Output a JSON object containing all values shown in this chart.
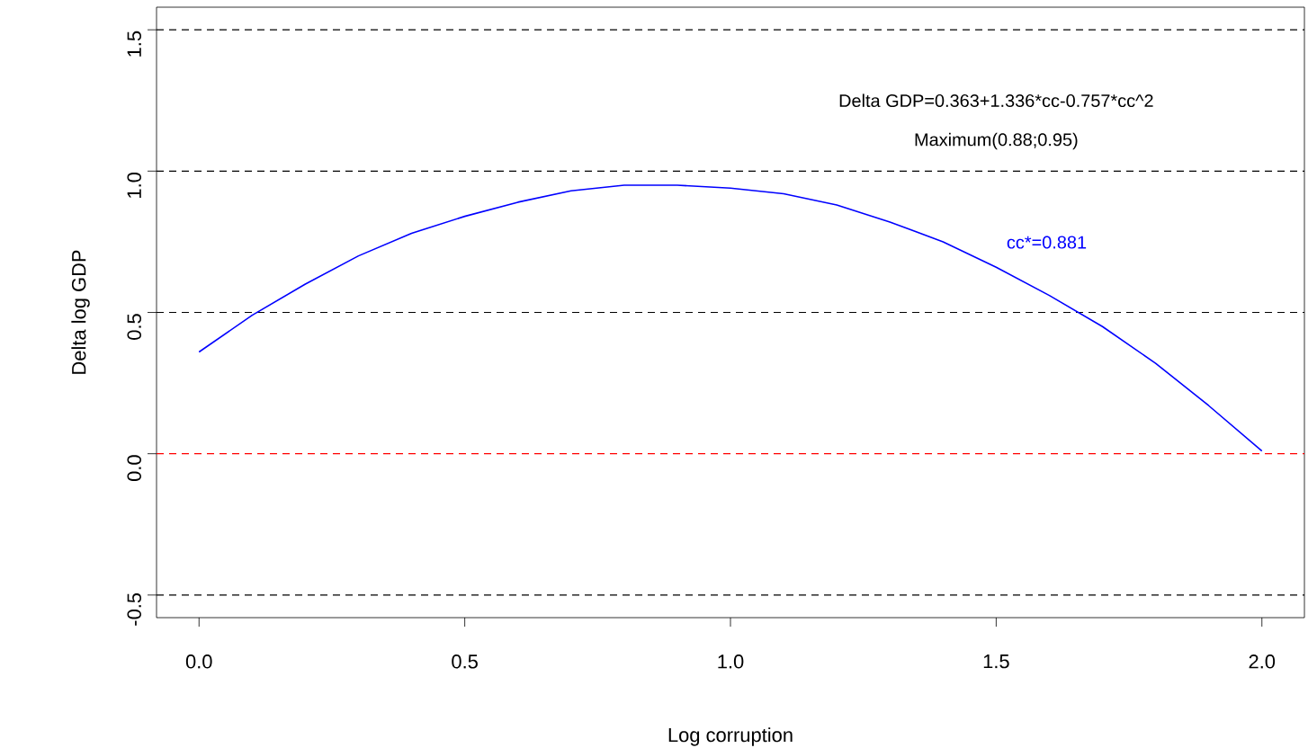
{
  "chart_data": {
    "type": "line",
    "xlabel": "Log corruption",
    "ylabel": "Delta log GDP",
    "x": [
      0,
      0.1,
      0.2,
      0.3,
      0.4,
      0.5,
      0.6,
      0.7,
      0.8,
      0.9,
      1.0,
      1.1,
      1.2,
      1.3,
      1.4,
      1.5,
      1.6,
      1.7,
      1.8,
      1.9,
      2.0
    ],
    "series": [
      {
        "color": "#0000ff",
        "values": [
          0.36,
          0.49,
          0.6,
          0.7,
          0.78,
          0.84,
          0.89,
          0.93,
          0.95,
          0.95,
          0.94,
          0.92,
          0.88,
          0.82,
          0.75,
          0.66,
          0.56,
          0.45,
          0.32,
          0.17,
          0.01
        ]
      }
    ],
    "xlim": [
      -0.08,
      2.08
    ],
    "ylim": [
      -0.58,
      1.58
    ],
    "xticks": [
      {
        "value": 0,
        "label": "0.0"
      },
      {
        "value": 0.5,
        "label": "0.5"
      },
      {
        "value": 1,
        "label": "1.0"
      },
      {
        "value": 1.5,
        "label": "1.5"
      },
      {
        "value": 2,
        "label": "2.0"
      }
    ],
    "yticks": [
      {
        "value": -0.5,
        "label": "-0.5"
      },
      {
        "value": 0,
        "label": "0.0"
      },
      {
        "value": 0.5,
        "label": "0.5"
      },
      {
        "value": 1,
        "label": "1.0"
      },
      {
        "value": 1.5,
        "label": "1.5"
      }
    ],
    "ref_lines": [
      {
        "axis": "y",
        "value": -0.5,
        "color": "#000000",
        "line_style": "dashed"
      },
      {
        "axis": "y",
        "value": 0,
        "color": "#ff0000",
        "line_style": "dashed"
      },
      {
        "axis": "y",
        "value": 0.5,
        "color": "#000000",
        "line_style": "dashed"
      },
      {
        "axis": "y",
        "value": 1,
        "color": "#000000",
        "line_style": "dashed"
      },
      {
        "axis": "y",
        "value": 1.5,
        "color": "#000000",
        "line_style": "dashed"
      }
    ],
    "annotations": [
      "Delta GDP=0.363+1.336*cc-0.757*cc^2",
      "Maximum(0.88;0.95)",
      "cc*=0.881"
    ],
    "grid": false,
    "marker": "none",
    "line_style": "solid"
  }
}
